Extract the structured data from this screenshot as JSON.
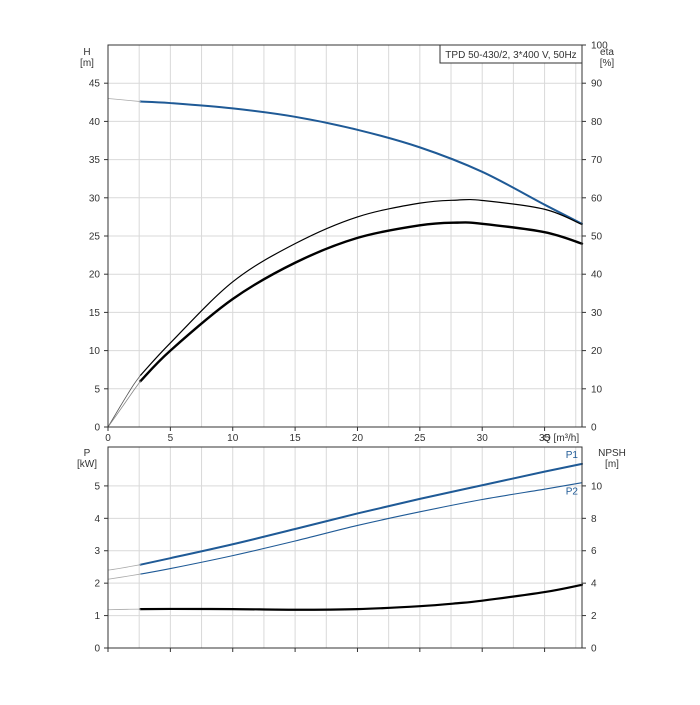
{
  "chart_data": [
    {
      "type": "line",
      "title": "TPD 50-430/2, 3*400 V, 50Hz",
      "xlabel": "Q [m³/h]",
      "ylabel_left_name": "H",
      "ylabel_left_unit": "[m]",
      "ylabel_right_name": "eta",
      "ylabel_right_unit": "[%]",
      "xlim": [
        0,
        38
      ],
      "ylim_left": [
        0,
        50
      ],
      "ylim_right": [
        0,
        100
      ],
      "x_ticks": [
        0,
        5,
        10,
        15,
        20,
        25,
        30,
        35
      ],
      "y_left_ticks": [
        0,
        5,
        10,
        15,
        20,
        25,
        30,
        35,
        40,
        45
      ],
      "y_right_ticks": [
        0,
        10,
        20,
        30,
        40,
        50,
        60,
        70,
        80,
        90,
        100
      ],
      "grid": true,
      "series": [
        {
          "color": "#1f5a96",
          "axis": "left",
          "width": 2,
          "x": [
            2.6,
            5,
            10,
            15,
            20,
            25,
            30,
            35,
            38
          ],
          "y": [
            42.6,
            42.4,
            41.7,
            40.6,
            38.9,
            36.6,
            33.4,
            29.1,
            26.6
          ]
        },
        {
          "color": "#000000",
          "axis": "right",
          "width": 1.2,
          "x": [
            2.6,
            5,
            10,
            15,
            20,
            25,
            28,
            30,
            35,
            38
          ],
          "y": [
            13.5,
            22,
            38,
            48,
            55,
            58.6,
            59.4,
            59.3,
            57,
            53
          ]
        },
        {
          "color": "#000000",
          "axis": "right",
          "width": 2.4,
          "x": [
            2.6,
            5,
            10,
            15,
            20,
            25,
            28,
            30,
            35,
            38
          ],
          "y": [
            12,
            20,
            33.5,
            43,
            49.5,
            52.8,
            53.5,
            53.2,
            51,
            48
          ]
        },
        {
          "color": "#aaaaaa",
          "axis": "left",
          "width": 0.8,
          "x": [
            0,
            1,
            2.6
          ],
          "y": [
            43,
            42.85,
            42.6
          ]
        },
        {
          "color": "#555555",
          "axis": "right",
          "width": 0.8,
          "x": [
            0,
            1,
            2,
            2.6
          ],
          "y": [
            0,
            5.5,
            10.8,
            13.5
          ]
        },
        {
          "color": "#888888",
          "axis": "right",
          "width": 0.8,
          "x": [
            0,
            1,
            2,
            2.6
          ],
          "y": [
            0,
            4.6,
            9.3,
            12
          ]
        }
      ]
    },
    {
      "type": "line",
      "xlabel": "",
      "ylabel_left_name": "P",
      "ylabel_left_unit": "[kW]",
      "ylabel_right_name": "NPSH",
      "ylabel_right_unit": "[m]",
      "xlim": [
        0,
        38
      ],
      "ylim_left": [
        0,
        6.2
      ],
      "ylim_right": [
        0,
        12.4
      ],
      "x_ticks": [
        0,
        5,
        10,
        15,
        20,
        25,
        30,
        35
      ],
      "y_left_ticks": [
        0,
        1,
        2,
        3,
        4,
        5
      ],
      "y_right_ticks": [
        0,
        2,
        4,
        6,
        8,
        10
      ],
      "grid": true,
      "series": [
        {
          "name": "P1",
          "color": "#1f5a96",
          "axis": "left",
          "width": 2,
          "x": [
            2.6,
            5,
            10,
            15,
            20,
            25,
            30,
            35,
            38
          ],
          "y": [
            2.57,
            2.77,
            3.2,
            3.67,
            4.15,
            4.6,
            5.02,
            5.44,
            5.68
          ]
        },
        {
          "name": "P2",
          "color": "#1f5a96",
          "axis": "left",
          "width": 1.1,
          "x": [
            2.6,
            5,
            10,
            15,
            20,
            25,
            30,
            35,
            38
          ],
          "y": [
            2.28,
            2.45,
            2.85,
            3.3,
            3.78,
            4.2,
            4.58,
            4.9,
            5.1
          ]
        },
        {
          "color": "#000000",
          "axis": "right",
          "width": 2.2,
          "x": [
            2.6,
            5,
            10,
            15,
            20,
            25,
            28,
            30,
            35,
            38
          ],
          "y": [
            2.4,
            2.41,
            2.4,
            2.36,
            2.4,
            2.58,
            2.76,
            2.92,
            3.45,
            3.9
          ]
        },
        {
          "color": "#aaaaaa",
          "axis": "left",
          "width": 0.8,
          "x": [
            0,
            1,
            2.6
          ],
          "y": [
            2.4,
            2.46,
            2.57
          ]
        },
        {
          "color": "#aaaaaa",
          "axis": "left",
          "width": 0.8,
          "x": [
            0,
            1,
            2.6
          ],
          "y": [
            2.12,
            2.18,
            2.28
          ]
        },
        {
          "color": "#aaaaaa",
          "axis": "right",
          "width": 0.8,
          "x": [
            0,
            1,
            2.6
          ],
          "y": [
            2.36,
            2.38,
            2.4
          ]
        }
      ]
    }
  ]
}
